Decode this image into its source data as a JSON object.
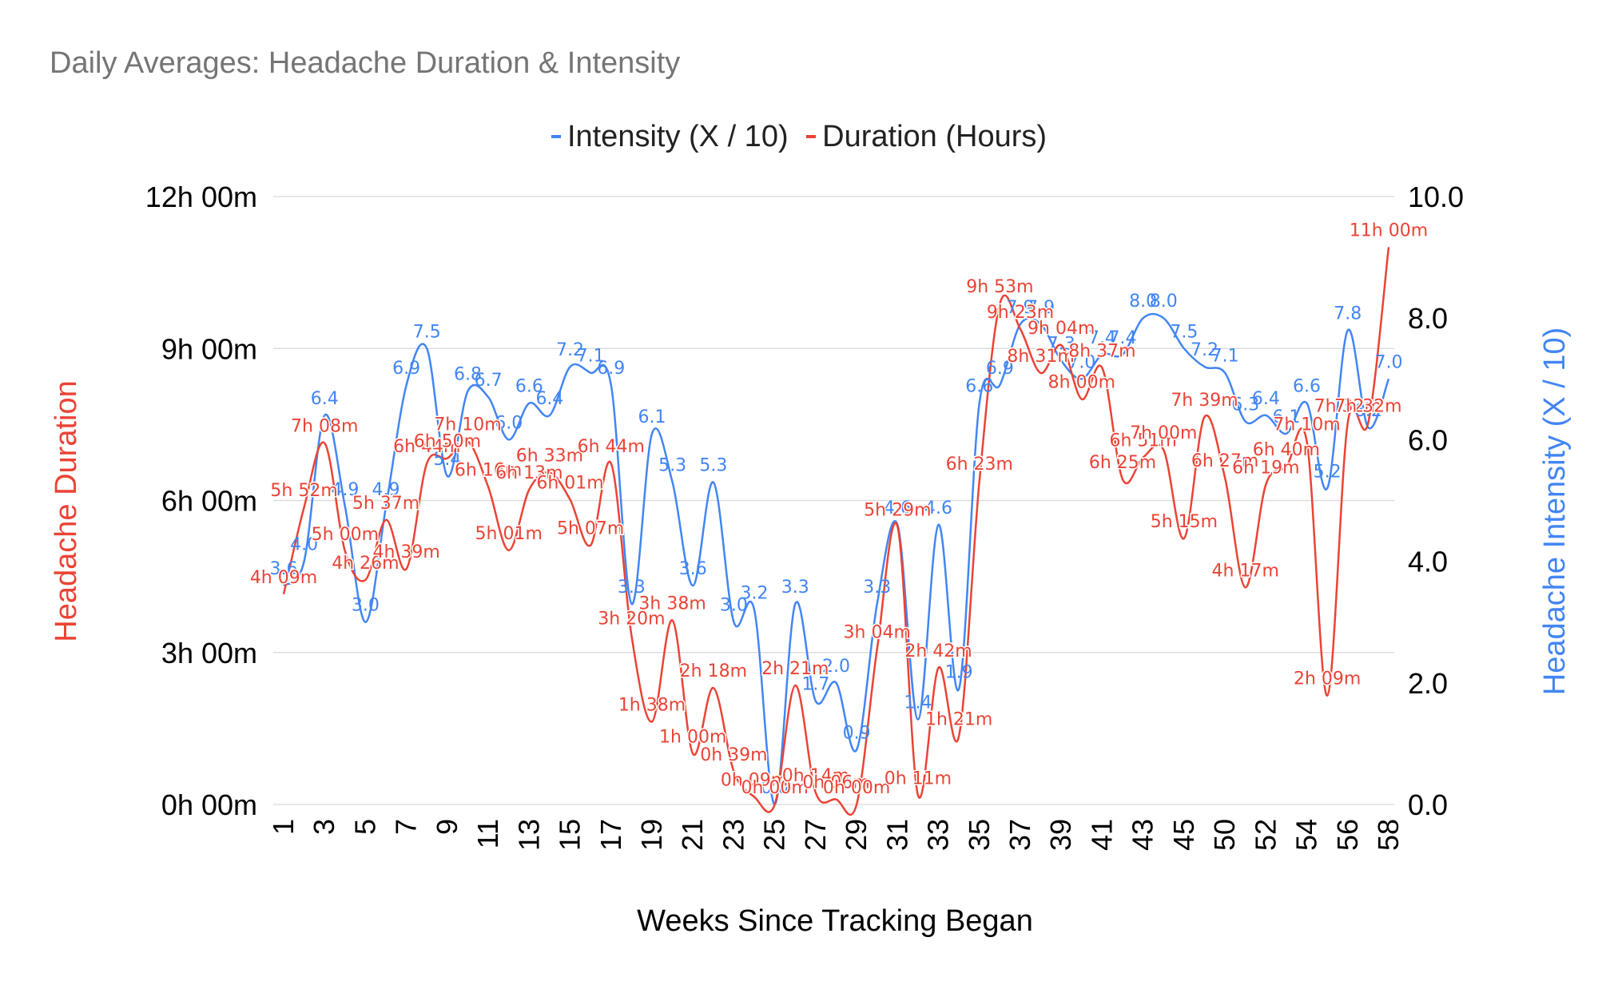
{
  "chart_data": {
    "type": "line",
    "title": "Daily Averages: Headache Duration & Intensity",
    "xlabel": "Weeks Since Tracking Began",
    "ylabel_left": "Headache Duration",
    "ylabel_right": "Headache Intensity (X / 10)",
    "curve": "smooth",
    "grid": true,
    "legend_position": "top",
    "categories": [
      "1",
      "2",
      "3",
      "4",
      "5",
      "6",
      "7",
      "8",
      "9",
      "10",
      "11",
      "12",
      "13",
      "14",
      "15",
      "16",
      "17",
      "18",
      "19",
      "20",
      "21",
      "22",
      "23",
      "24",
      "25",
      "26",
      "27",
      "28",
      "29",
      "30",
      "31",
      "32",
      "33",
      "34",
      "35",
      "36",
      "37",
      "38",
      "39",
      "40",
      "41",
      "42",
      "43",
      "44",
      "45",
      "47",
      "50",
      "51",
      "52",
      "53",
      "54",
      "55",
      "56",
      "57",
      "58"
    ],
    "x_tick_labels": [
      "1",
      "3",
      "5",
      "7",
      "9",
      "11",
      "13",
      "15",
      "17",
      "19",
      "21",
      "23",
      "25",
      "27",
      "29",
      "31",
      "33",
      "35",
      "37",
      "39",
      "41",
      "43",
      "45",
      "50",
      "52",
      "54",
      "56",
      "58"
    ],
    "left_axis": {
      "ylim_minutes": [
        0,
        720
      ],
      "ticks": [
        "0h 00m",
        "3h 00m",
        "6h 00m",
        "9h 00m",
        "12h 00m"
      ]
    },
    "right_axis": {
      "ylim": [
        0,
        10
      ],
      "ticks": [
        "0.0",
        "2.0",
        "4.0",
        "6.0",
        "8.0",
        "10.0"
      ]
    },
    "series": [
      {
        "name": "Intensity (X / 10)",
        "axis": "right",
        "color": "#4285f4",
        "values": [
          3.6,
          4.0,
          6.4,
          4.9,
          3.0,
          4.9,
          6.9,
          7.5,
          5.4,
          6.8,
          6.7,
          6.0,
          6.6,
          6.4,
          7.2,
          7.1,
          6.9,
          3.3,
          6.1,
          5.3,
          3.6,
          5.3,
          3.0,
          3.2,
          0.0,
          3.3,
          1.7,
          2.0,
          0.9,
          3.3,
          4.6,
          1.4,
          4.6,
          1.9,
          6.6,
          6.9,
          7.9,
          7.9,
          7.3,
          7.0,
          7.4,
          7.4,
          8.0,
          8.0,
          7.5,
          7.2,
          7.1,
          6.3,
          6.4,
          6.1,
          6.6,
          5.2,
          7.8,
          6.2,
          7.0
        ],
        "labels": [
          "3.6",
          "4.0",
          "6.4",
          "4.9",
          "3.0",
          "4.9",
          "6.9",
          "7.5",
          "5.4",
          "6.8",
          "6.7",
          "6.0",
          "6.6",
          "6.4",
          "7.2",
          "7.1",
          "6.9",
          "3.3",
          "6.1",
          "5.3",
          "3.6",
          "5.3",
          "3.0",
          "3.2",
          "0.0",
          "3.3",
          "1.7",
          "2.0",
          "0.9",
          "3.3",
          "4.6",
          "1.4",
          "4.6",
          "1.9",
          "6.6",
          "6.9",
          "7.9",
          "7.9",
          "7.3",
          "7.0",
          "7.4",
          "7.4",
          "8.0",
          "8.0",
          "7.5",
          "7.2",
          "7.1",
          "6.3",
          "6.4",
          "6.1",
          "6.6",
          "5.2",
          "7.8",
          "6.2",
          "7.0"
        ]
      },
      {
        "name": "Duration (Hours)",
        "axis": "left",
        "color": "#ea4335",
        "values_minutes": [
          249,
          352,
          428,
          300,
          266,
          337,
          279,
          404,
          410,
          430,
          376,
          301,
          373,
          393,
          361,
          307,
          404,
          200,
          98,
          218,
          60,
          138,
          39,
          9,
          0,
          141,
          14,
          6,
          0,
          184,
          329,
          11,
          162,
          81,
          383,
          593,
          563,
          511,
          544,
          480,
          517,
          385,
          411,
          420,
          315,
          459,
          387,
          257,
          379,
          400,
          430,
          129,
          452,
          452,
          660
        ],
        "labels": [
          "4h 09m",
          "5h 52m",
          "7h 08m",
          "5h 00m",
          "4h 26m",
          "5h 37m",
          "4h 39m",
          "6h 44m",
          "6h 50m",
          "7h 10m",
          "6h 16m",
          "5h 01m",
          "6h 13m",
          "6h 33m",
          "6h 01m",
          "5h 07m",
          "6h 44m",
          "3h 20m",
          "1h 38m",
          "3h 38m",
          "1h 00m",
          "2h 18m",
          "0h 39m",
          "0h 09m",
          "0h 00m",
          "2h 21m",
          "0h 14m",
          "0h 06m",
          "0h 00m",
          "3h 04m",
          "5h 29m",
          "0h 11m",
          "2h 42m",
          "1h 21m",
          "6h 23m",
          "9h 53m",
          "9h 23m",
          "8h 31m",
          "9h 04m",
          "8h 00m",
          "8h 37m",
          "6h 25m",
          "6h 51m",
          "7h 00m",
          "5h 15m",
          "7h 39m",
          "6h 27m",
          "4h 17m",
          "6h 19m",
          "6h 40m",
          "7h 10m",
          "2h 09m",
          "7h 32m",
          "7h 32m",
          "11h 00m"
        ]
      }
    ]
  }
}
